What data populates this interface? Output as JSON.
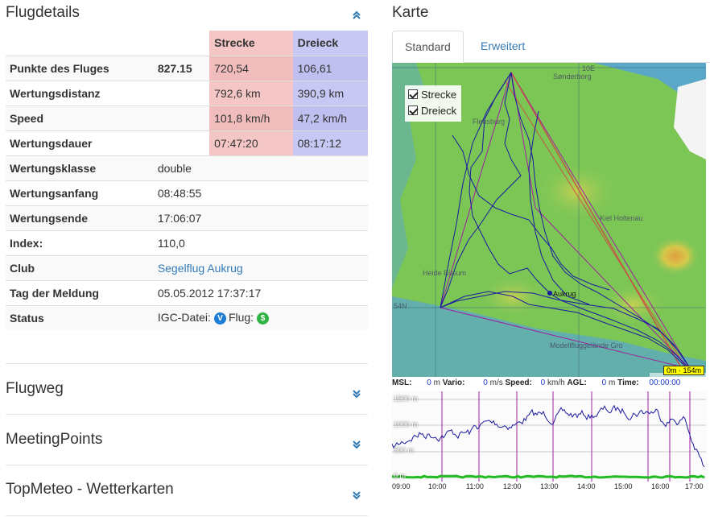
{
  "flugdetails": {
    "title": "Flugdetails",
    "header": {
      "strecke": "Strecke",
      "dreieck": "Dreieck"
    },
    "score_rows": [
      {
        "label": "Punkte des Fluges",
        "total": "827.15",
        "strecke": "720,54",
        "dreieck": "106,61"
      },
      {
        "label": "Wertungsdistanz",
        "total": "",
        "strecke": "792,6 km",
        "dreieck": "390,9 km"
      },
      {
        "label": "Speed",
        "total": "",
        "strecke": "101,8 km/h",
        "dreieck": "47,2 km/h"
      },
      {
        "label": "Wertungsdauer",
        "total": "",
        "strecke": "07:47:20",
        "dreieck": "08:17:12"
      }
    ],
    "info_rows": [
      {
        "label": "Wertungsklasse",
        "value": "double"
      },
      {
        "label": "Wertungsanfang",
        "value": "08:48:55"
      },
      {
        "label": "Wertungsende",
        "value": "17:06:07"
      },
      {
        "label": "Index:",
        "value": "110,0"
      },
      {
        "label": "Club",
        "value": "Segelflug Aukrug"
      },
      {
        "label": "Tag der Meldung",
        "value": "05.05.2012 17:37:17"
      }
    ],
    "status": {
      "label": "Status",
      "igc_label": "IGC-Datei:",
      "igc_badge": "V",
      "flug_label": "Flug:",
      "flug_badge": "$"
    }
  },
  "collapsed_panels": [
    {
      "title": "Flugweg"
    },
    {
      "title": "MeetingPoints"
    },
    {
      "title": "TopMeteo - Wetterkarten"
    }
  ],
  "karte": {
    "title": "Karte",
    "tabs": [
      {
        "label": "Standard",
        "active": true
      },
      {
        "label": "Erweitert",
        "active": false
      }
    ],
    "legend": [
      {
        "label": "Strecke",
        "checked": true
      },
      {
        "label": "Dreieck",
        "checked": true
      }
    ],
    "place_labels": [
      "10E",
      "Sønderborg",
      "Flensburg",
      "Kiel Holtenau",
      "Heide Büsum",
      "Aukrug",
      "54N",
      "Modellfluggelände Gro"
    ],
    "scale": "0m  ·  154m"
  },
  "barogram": {
    "stats": [
      {
        "key": "MSL:",
        "value": "0",
        "unit": "m"
      },
      {
        "key": "Vario:",
        "value": "0",
        "unit": "m/s"
      },
      {
        "key": "Speed:",
        "value": "0",
        "unit": "km/h"
      },
      {
        "key": "AGL:",
        "value": "0",
        "unit": "m"
      },
      {
        "key": "Time:",
        "value": "00:00:00",
        "unit": ""
      }
    ],
    "y_ticks": [
      "1500 m",
      "1000 m",
      "500 m",
      "0 m"
    ],
    "x_ticks": [
      "09:00",
      "10:00",
      "11:00",
      "12:00",
      "13:00",
      "14:00",
      "15:00",
      "16:00",
      "17:00"
    ]
  },
  "colors": {
    "strecke": "#f5c6c6",
    "dreieck": "#c8c8f5",
    "link": "#337ab7",
    "track": "#1a1aa0",
    "triangle": "#a020a0",
    "route": "#d04040"
  }
}
